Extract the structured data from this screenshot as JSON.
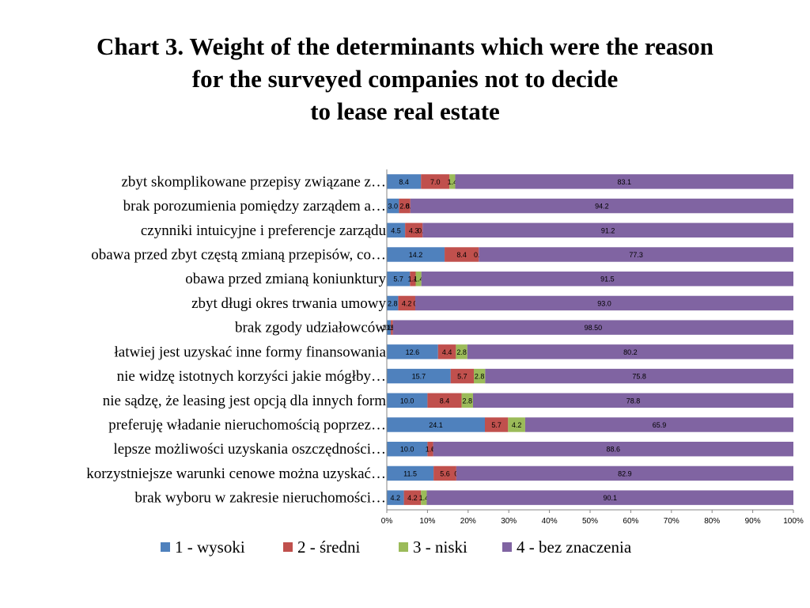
{
  "chart_data": {
    "type": "bar",
    "orientation": "horizontal",
    "stacked": true,
    "normalized": true,
    "title_lines": [
      "Chart 3. Weight of the determinants which were the reason",
      "for the surveyed companies not to decide",
      "to lease real estate"
    ],
    "categories": [
      "zbyt skomplikowane przepisy związane z…",
      "brak porozumienia pomiędzy zarządem a…",
      "czynniki intuicyjne i preferencje zarządu",
      "obawa przed zbyt częstą zmianą przepisów, co…",
      "obawa przed zmianą koniunktury",
      "zbyt długi okres trwania umowy",
      "brak zgody udziałowców",
      "łatwiej jest uzyskać inne formy finansowania",
      "nie widzę istotnych korzyści jakie mógłby…",
      "nie sądzę, że leasing jest opcją dla innych form",
      "preferuję władanie nieruchomością poprzez…",
      "lepsze możliwości uzyskania oszczędności…",
      "korzystniejsze warunki cenowe można uzyskać…",
      "brak wyboru w zakresie nieruchomości…"
    ],
    "series": [
      {
        "name": "1 - wysoki",
        "color": "#4F81BD",
        "values": [
          8.4,
          3.0,
          4.5,
          14.2,
          5.7,
          2.8,
          1.0,
          12.6,
          15.7,
          10.0,
          24.1,
          10.0,
          11.5,
          4.2
        ],
        "labels": [
          "8.4",
          "3.0",
          "4.5",
          "14.2",
          "5.7",
          "2.8",
          "1.00",
          "12.6",
          "15.7",
          "10.0",
          "24.1",
          "10.0",
          "11.5",
          "4.2"
        ]
      },
      {
        "name": "2 - średni",
        "color": "#C0504D",
        "values": [
          7.0,
          2.8,
          4.3,
          8.4,
          1.4,
          4.2,
          0.5,
          4.4,
          5.7,
          8.4,
          5.7,
          1.4,
          5.6,
          4.2
        ],
        "labels": [
          "7.0",
          "2.8",
          "4.3",
          "8.4",
          "1.4",
          "4.2",
          "0.50",
          "4.4",
          "5.7",
          "8.4",
          "5.7",
          "1.4",
          "5.6",
          "4.2"
        ]
      },
      {
        "name": "3 - niski",
        "color": "#9BBB59",
        "values": [
          1.4,
          0.0,
          0.0,
          0.0,
          1.4,
          0.0,
          0.0,
          2.8,
          2.8,
          2.8,
          4.2,
          0.0,
          0.0,
          1.4
        ],
        "labels": [
          "1.4",
          "0.0",
          "0.0",
          "0.0",
          "1.4",
          "0",
          "0.00",
          "2.8",
          "2.8",
          "2.8",
          "4.2",
          "0",
          "0",
          "1.4"
        ]
      },
      {
        "name": "4 - bez znaczenia",
        "color": "#8064A2",
        "values": [
          83.1,
          94.2,
          91.2,
          77.3,
          91.5,
          93.0,
          98.5,
          80.2,
          75.8,
          78.8,
          65.9,
          88.6,
          82.9,
          90.1
        ],
        "labels": [
          "83.1",
          "94.2",
          "91.2",
          "77.3",
          "91.5",
          "93.0",
          "98.50",
          "80.2",
          "75.8",
          "78.8",
          "65.9",
          "88.6",
          "82.9",
          "90.1"
        ]
      }
    ],
    "xlim": [
      0,
      100
    ],
    "x_ticks": [
      "0%",
      "10%",
      "20%",
      "30%",
      "40%",
      "50%",
      "60%",
      "70%",
      "80%",
      "90%",
      "100%"
    ],
    "grid": false,
    "legend_placement": "bottom"
  }
}
